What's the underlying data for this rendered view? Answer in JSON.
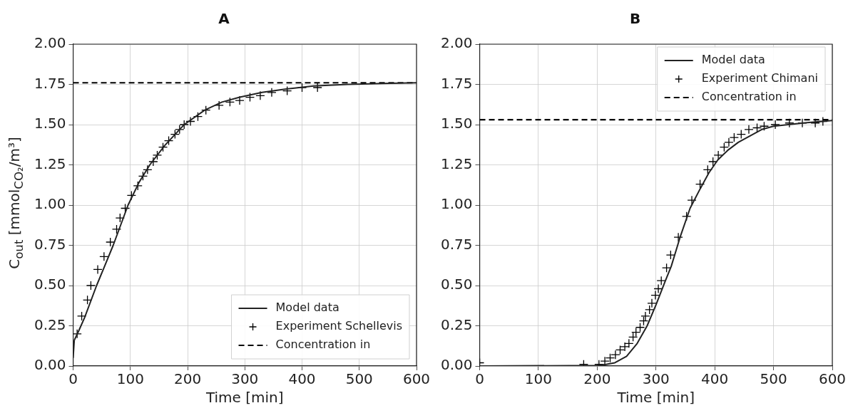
{
  "chart_data": [
    {
      "type": "line",
      "title": "A",
      "xlabel": "Time [min]",
      "ylabel": "C$_{out}$ [mmol$_{CO₂}$/m³]",
      "xlim": [
        0,
        600
      ],
      "xticks": [
        0,
        100,
        200,
        300,
        400,
        500,
        600
      ],
      "ylim": [
        0,
        2
      ],
      "yticks": [
        {
          "value": 0,
          "label": "0.00"
        },
        {
          "value": 0.25,
          "label": "0.25"
        },
        {
          "value": 0.5,
          "label": "0.50"
        },
        {
          "value": 0.75,
          "label": "0.75"
        },
        {
          "value": 1,
          "label": "1.00"
        },
        {
          "value": 1.25,
          "label": "1.25"
        },
        {
          "value": 1.5,
          "label": "1.50"
        },
        {
          "value": 1.75,
          "label": "1.75"
        },
        {
          "value": 2,
          "label": "2.00"
        }
      ],
      "grid": true,
      "legend": "bottom right",
      "series": [
        {
          "name": "Model data",
          "type": "line",
          "color": "#222222",
          "marker": "none",
          "line_style": "solid",
          "x": [
            0,
            2,
            10,
            20,
            41,
            55,
            70,
            96,
            115,
            134,
            160,
            194,
            230,
            260,
            291,
            330,
            370,
            420,
            480,
            540,
            600
          ],
          "values": [
            0.05,
            0.16,
            0.22,
            0.3,
            0.5,
            0.62,
            0.75,
            1.0,
            1.14,
            1.25,
            1.37,
            1.5,
            1.59,
            1.64,
            1.67,
            1.7,
            1.72,
            1.74,
            1.75,
            1.755,
            1.76
          ]
        },
        {
          "name": "Experiment Schellevis",
          "type": "scatter",
          "color": "#000000",
          "marker": "cross",
          "x": [
            7,
            15,
            25,
            31,
            43,
            54,
            65,
            76,
            82,
            91,
            102,
            113,
            122,
            130,
            140,
            147,
            157,
            167,
            178,
            186,
            194,
            205,
            218,
            232,
            255,
            274,
            291,
            309,
            327,
            347,
            374,
            400,
            427
          ],
          "values": [
            0.2,
            0.31,
            0.41,
            0.5,
            0.6,
            0.68,
            0.77,
            0.85,
            0.92,
            0.98,
            1.06,
            1.12,
            1.18,
            1.22,
            1.27,
            1.31,
            1.36,
            1.4,
            1.44,
            1.47,
            1.5,
            1.52,
            1.55,
            1.59,
            1.62,
            1.64,
            1.65,
            1.67,
            1.68,
            1.7,
            1.71,
            1.73,
            1.73
          ]
        }
      ],
      "ref_lines": [
        {
          "axis": "y",
          "value": 1.76,
          "label": "Concentration in",
          "color": "#000000",
          "line_style": "dashed"
        }
      ]
    },
    {
      "type": "line",
      "title": "B",
      "xlabel": "Time [min]",
      "xlim": [
        0,
        600
      ],
      "xticks": [
        0,
        100,
        200,
        300,
        400,
        500,
        600
      ],
      "ylim": [
        0,
        2
      ],
      "yticks": [
        {
          "value": 0,
          "label": "0.00"
        },
        {
          "value": 0.25,
          "label": "0.25"
        },
        {
          "value": 0.5,
          "label": "0.50"
        },
        {
          "value": 0.75,
          "label": "0.75"
        },
        {
          "value": 1,
          "label": "1.00"
        },
        {
          "value": 1.25,
          "label": "1.25"
        },
        {
          "value": 1.5,
          "label": "1.50"
        },
        {
          "value": 1.75,
          "label": "1.75"
        },
        {
          "value": 2,
          "label": "2.00"
        }
      ],
      "grid": true,
      "legend": "top right",
      "series": [
        {
          "name": "Model data",
          "type": "line",
          "color": "#222222",
          "marker": "none",
          "line_style": "solid",
          "x": [
            0,
            200,
            215,
            230,
            240,
            250,
            268,
            285,
            300,
            315,
            326,
            341,
            358,
            375,
            390,
            405,
            422,
            440,
            460,
            480,
            500,
            550,
            600
          ],
          "values": [
            0,
            0.003,
            0.01,
            0.02,
            0.04,
            0.06,
            0.14,
            0.25,
            0.38,
            0.52,
            0.62,
            0.8,
            0.98,
            1.1,
            1.2,
            1.28,
            1.34,
            1.39,
            1.43,
            1.47,
            1.49,
            1.51,
            1.525
          ]
        },
        {
          "name": "Experiment Chimani",
          "type": "scatter",
          "color": "#000000",
          "marker": "cross",
          "x": [
            0,
            177,
            203,
            213,
            222,
            231,
            239,
            247,
            254,
            261,
            266,
            273,
            279,
            282,
            289,
            293,
            299,
            304,
            309,
            318,
            325,
            338,
            352,
            361,
            375,
            388,
            397,
            406,
            416,
            424,
            433,
            445,
            458,
            472,
            484,
            503,
            527,
            549,
            571,
            584
          ],
          "values": [
            0.02,
            0.01,
            0.01,
            0.03,
            0.05,
            0.07,
            0.1,
            0.12,
            0.14,
            0.18,
            0.21,
            0.24,
            0.28,
            0.31,
            0.35,
            0.39,
            0.44,
            0.48,
            0.53,
            0.61,
            0.69,
            0.8,
            0.93,
            1.03,
            1.13,
            1.22,
            1.27,
            1.31,
            1.36,
            1.39,
            1.42,
            1.44,
            1.47,
            1.48,
            1.49,
            1.5,
            1.51,
            1.51,
            1.51,
            1.52
          ]
        }
      ],
      "ref_lines": [
        {
          "axis": "y",
          "value": 1.53,
          "label": "Concentration in",
          "color": "#000000",
          "line_style": "dashed"
        }
      ]
    }
  ]
}
